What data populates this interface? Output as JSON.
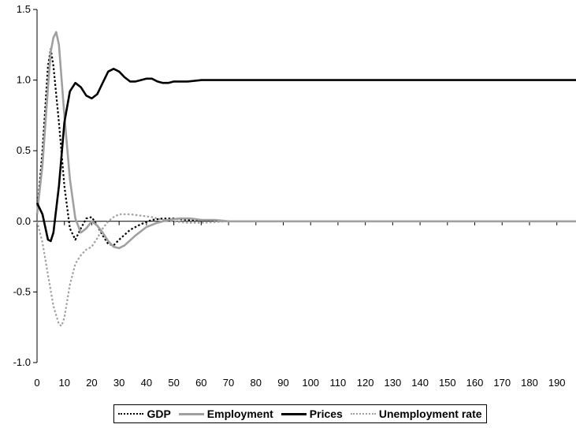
{
  "chart_data": {
    "type": "line",
    "title": "",
    "xlabel": "",
    "ylabel": "",
    "xlim": [
      0,
      197
    ],
    "ylim": [
      -1.0,
      1.5
    ],
    "xticks": [
      0,
      10,
      20,
      30,
      40,
      50,
      60,
      70,
      80,
      90,
      100,
      110,
      120,
      130,
      140,
      150,
      160,
      170,
      180,
      190
    ],
    "yticks": [
      -1.0,
      -0.5,
      0.0,
      0.5,
      1.0,
      1.5
    ],
    "ytick_labels": [
      "-1.0",
      "-0.5",
      "0.0",
      "0.5",
      "1.0",
      "1.5"
    ],
    "grid": false,
    "legend_position": "bottom",
    "series": [
      {
        "name": "GDP",
        "color": "#000000",
        "style": "dotted",
        "points": [
          [
            0,
            0.05
          ],
          [
            2,
            0.5
          ],
          [
            4,
            1.1
          ],
          [
            5,
            1.22
          ],
          [
            6,
            1.1
          ],
          [
            8,
            0.7
          ],
          [
            10,
            0.25
          ],
          [
            12,
            -0.05
          ],
          [
            14,
            -0.13
          ],
          [
            16,
            -0.05
          ],
          [
            18,
            0.02
          ],
          [
            20,
            0.03
          ],
          [
            22,
            -0.03
          ],
          [
            24,
            -0.1
          ],
          [
            26,
            -0.16
          ],
          [
            28,
            -0.17
          ],
          [
            30,
            -0.13
          ],
          [
            34,
            -0.06
          ],
          [
            38,
            -0.02
          ],
          [
            42,
            0.01
          ],
          [
            46,
            0.02
          ],
          [
            50,
            0.02
          ],
          [
            55,
            0.01
          ],
          [
            60,
            0.01
          ],
          [
            70,
            0.0
          ],
          [
            80,
            0.0
          ],
          [
            90,
            0.0
          ]
        ]
      },
      {
        "name": "Employment",
        "color": "#a0a0a0",
        "style": "solid",
        "points": [
          [
            0,
            0.05
          ],
          [
            2,
            0.4
          ],
          [
            4,
            0.95
          ],
          [
            5,
            1.2
          ],
          [
            6,
            1.3
          ],
          [
            7,
            1.34
          ],
          [
            8,
            1.25
          ],
          [
            10,
            0.75
          ],
          [
            12,
            0.3
          ],
          [
            14,
            0.02
          ],
          [
            16,
            -0.08
          ],
          [
            18,
            -0.05
          ],
          [
            20,
            0.0
          ],
          [
            22,
            -0.03
          ],
          [
            24,
            -0.08
          ],
          [
            26,
            -0.14
          ],
          [
            28,
            -0.18
          ],
          [
            30,
            -0.19
          ],
          [
            32,
            -0.17
          ],
          [
            36,
            -0.1
          ],
          [
            40,
            -0.04
          ],
          [
            44,
            -0.01
          ],
          [
            48,
            0.01
          ],
          [
            52,
            0.02
          ],
          [
            56,
            0.02
          ],
          [
            60,
            0.01
          ],
          [
            65,
            0.01
          ],
          [
            70,
            0.0
          ],
          [
            197,
            0.0
          ]
        ]
      },
      {
        "name": "Prices",
        "color": "#000000",
        "style": "solid",
        "points": [
          [
            0,
            0.13
          ],
          [
            2,
            0.05
          ],
          [
            4,
            -0.13
          ],
          [
            5,
            -0.14
          ],
          [
            6,
            -0.08
          ],
          [
            8,
            0.25
          ],
          [
            10,
            0.7
          ],
          [
            12,
            0.92
          ],
          [
            14,
            0.98
          ],
          [
            16,
            0.95
          ],
          [
            18,
            0.89
          ],
          [
            20,
            0.87
          ],
          [
            22,
            0.9
          ],
          [
            24,
            0.98
          ],
          [
            26,
            1.06
          ],
          [
            28,
            1.08
          ],
          [
            30,
            1.06
          ],
          [
            32,
            1.02
          ],
          [
            34,
            0.99
          ],
          [
            36,
            0.99
          ],
          [
            38,
            1.0
          ],
          [
            40,
            1.01
          ],
          [
            42,
            1.01
          ],
          [
            44,
            0.99
          ],
          [
            46,
            0.98
          ],
          [
            48,
            0.98
          ],
          [
            50,
            0.99
          ],
          [
            55,
            0.99
          ],
          [
            60,
            1.0
          ],
          [
            70,
            1.0
          ],
          [
            197,
            1.0
          ]
        ]
      },
      {
        "name": "Unemployment rate",
        "color": "#a0a0a0",
        "style": "dotted",
        "points": [
          [
            0,
            0.0
          ],
          [
            2,
            -0.15
          ],
          [
            4,
            -0.38
          ],
          [
            6,
            -0.6
          ],
          [
            8,
            -0.73
          ],
          [
            9,
            -0.74
          ],
          [
            10,
            -0.68
          ],
          [
            12,
            -0.45
          ],
          [
            14,
            -0.3
          ],
          [
            16,
            -0.24
          ],
          [
            18,
            -0.2
          ],
          [
            20,
            -0.18
          ],
          [
            22,
            -0.12
          ],
          [
            24,
            -0.05
          ],
          [
            26,
            0.0
          ],
          [
            28,
            0.03
          ],
          [
            30,
            0.05
          ],
          [
            34,
            0.05
          ],
          [
            38,
            0.04
          ],
          [
            42,
            0.03
          ],
          [
            46,
            0.01
          ],
          [
            50,
            0.0
          ],
          [
            55,
            -0.01
          ],
          [
            60,
            -0.01
          ],
          [
            70,
            0.0
          ],
          [
            80,
            0.0
          ],
          [
            90,
            0.0
          ]
        ]
      }
    ]
  },
  "legend": {
    "items": [
      {
        "label": "GDP"
      },
      {
        "label": "Employment"
      },
      {
        "label": "Prices"
      },
      {
        "label": "Unemployment rate"
      }
    ]
  }
}
